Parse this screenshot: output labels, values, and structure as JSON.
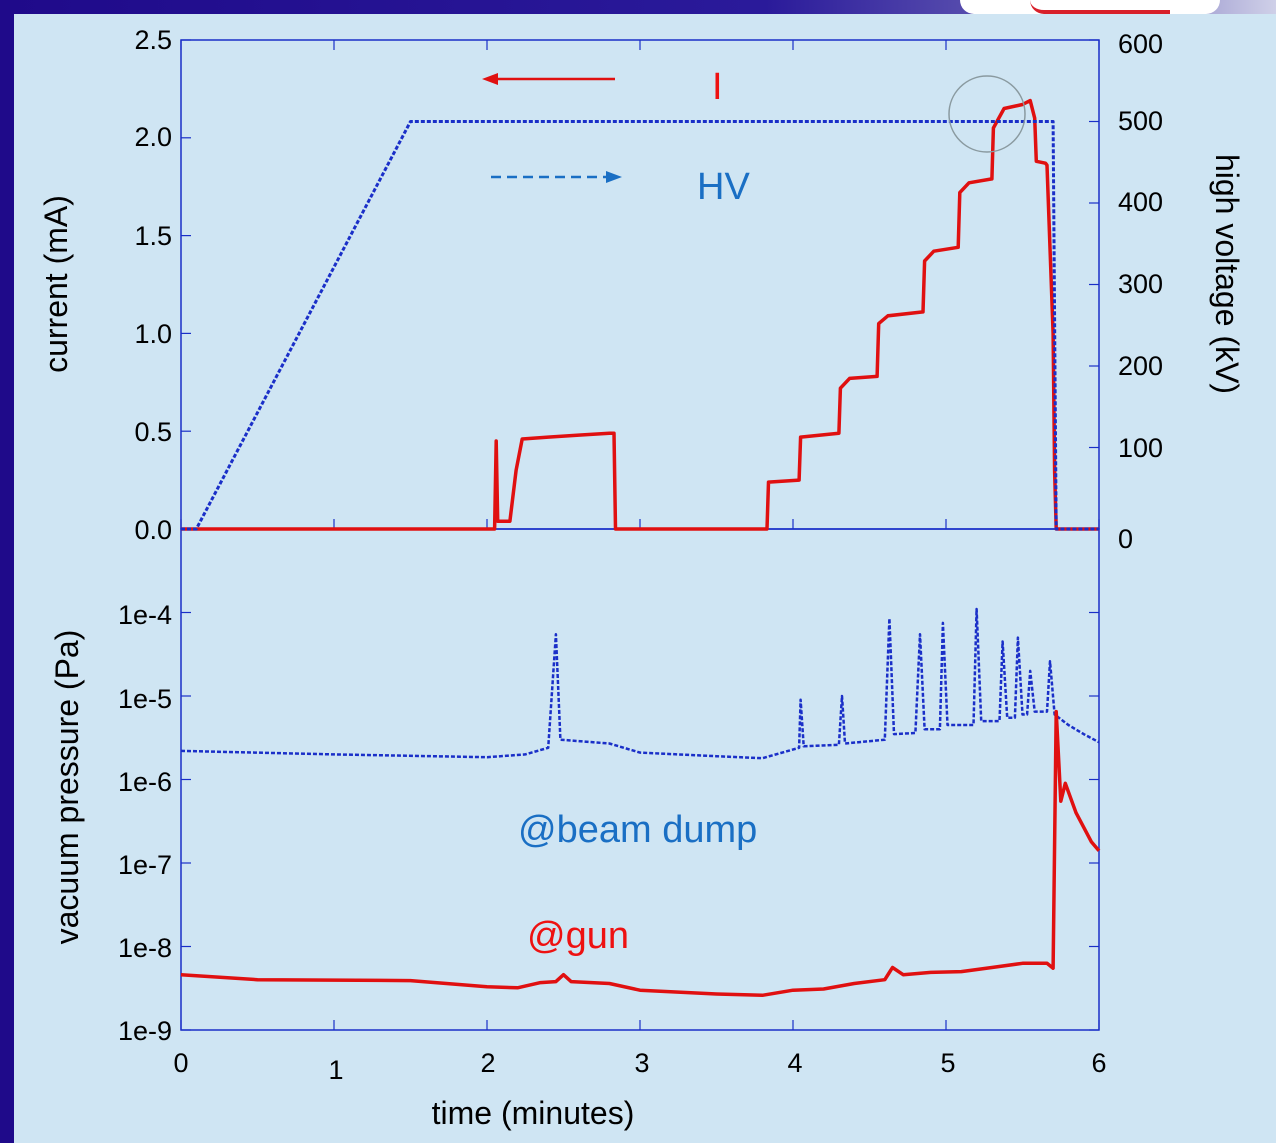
{
  "colors": {
    "current": "#e01010",
    "hv": "#1a2fc8",
    "beam_dump": "#1a2fc8",
    "gun": "#e01010",
    "background": "#cfe5f3",
    "frame": "#1f0a8a",
    "anno_blue": "#1a6fc4"
  },
  "chart_data": [
    {
      "type": "line",
      "xlabel": "time (minutes)",
      "ylabel": "current (mA)",
      "y2label": "high voltage (kV)",
      "xlim": [
        0,
        6
      ],
      "ylim": [
        0,
        2.5
      ],
      "y2lim": [
        0,
        600
      ],
      "y_ticks": [
        "0.0",
        "0.5",
        "1.0",
        "1.5",
        "2.0",
        "2.5"
      ],
      "y2_ticks": [
        "0",
        "100",
        "200",
        "300",
        "400",
        "500",
        "600"
      ],
      "annotations": {
        "current_label": "I",
        "hv_label": "HV"
      },
      "series": [
        {
          "name": "I",
          "axis": "left",
          "style": "solid",
          "points": [
            [
              0,
              0
            ],
            [
              2.05,
              0
            ],
            [
              2.06,
              0.45
            ],
            [
              2.07,
              0.04
            ],
            [
              2.15,
              0.04
            ],
            [
              2.19,
              0.3
            ],
            [
              2.23,
              0.46
            ],
            [
              2.4,
              0.47
            ],
            [
              2.6,
              0.48
            ],
            [
              2.8,
              0.49
            ],
            [
              2.83,
              0.49
            ],
            [
              2.84,
              0
            ],
            [
              3.83,
              0
            ],
            [
              3.84,
              0.24
            ],
            [
              4.04,
              0.25
            ],
            [
              4.05,
              0.47
            ],
            [
              4.3,
              0.49
            ],
            [
              4.31,
              0.72
            ],
            [
              4.37,
              0.77
            ],
            [
              4.55,
              0.78
            ],
            [
              4.56,
              1.05
            ],
            [
              4.62,
              1.09
            ],
            [
              4.85,
              1.11
            ],
            [
              4.86,
              1.37
            ],
            [
              4.92,
              1.42
            ],
            [
              5.08,
              1.44
            ],
            [
              5.09,
              1.72
            ],
            [
              5.15,
              1.77
            ],
            [
              5.3,
              1.79
            ],
            [
              5.31,
              2.05
            ],
            [
              5.38,
              2.15
            ],
            [
              5.5,
              2.17
            ],
            [
              5.55,
              2.19
            ],
            [
              5.58,
              2.1
            ],
            [
              5.59,
              1.88
            ],
            [
              5.65,
              1.87
            ],
            [
              5.66,
              1.86
            ],
            [
              5.7,
              1.0
            ],
            [
              5.71,
              0.3
            ],
            [
              5.72,
              0
            ],
            [
              6,
              0
            ]
          ]
        },
        {
          "name": "HV",
          "axis": "right",
          "style": "dashed",
          "points": [
            [
              0,
              0
            ],
            [
              0.1,
              0
            ],
            [
              1.5,
              500
            ],
            [
              5.7,
              500
            ],
            [
              5.72,
              0
            ],
            [
              6,
              0
            ]
          ]
        }
      ]
    },
    {
      "type": "line",
      "xlabel": "time (minutes)",
      "ylabel": "vacuum pressure (Pa)",
      "yscale": "log",
      "xlim": [
        0,
        6
      ],
      "ylim": [
        1e-09,
        0.001
      ],
      "y_ticks": [
        "1e-9",
        "1e-8",
        "1e-7",
        "1e-6",
        "1e-5",
        "1e-4"
      ],
      "x_ticks": [
        "0",
        "1",
        "2",
        "3",
        "4",
        "5",
        "6"
      ],
      "annotations": {
        "beam_dump_label": "@beam dump",
        "gun_label": "@gun"
      },
      "series": [
        {
          "name": "@beam dump",
          "style": "dashed",
          "points": [
            [
              0,
              2.2e-06
            ],
            [
              1,
              2e-06
            ],
            [
              2,
              1.85e-06
            ],
            [
              2.25,
              2e-06
            ],
            [
              2.4,
              2.4e-06
            ],
            [
              2.45,
              5.5e-05
            ],
            [
              2.48,
              3e-06
            ],
            [
              2.8,
              2.7e-06
            ],
            [
              3,
              2.1e-06
            ],
            [
              3.5,
              1.9e-06
            ],
            [
              3.8,
              1.8e-06
            ],
            [
              4.04,
              2.4e-06
            ],
            [
              4.05,
              9e-06
            ],
            [
              4.07,
              2.5e-06
            ],
            [
              4.3,
              2.6e-06
            ],
            [
              4.32,
              1e-05
            ],
            [
              4.34,
              2.7e-06
            ],
            [
              4.6,
              3e-06
            ],
            [
              4.63,
              8.5e-05
            ],
            [
              4.66,
              3.5e-06
            ],
            [
              4.8,
              3.6e-06
            ],
            [
              4.83,
              5.5e-05
            ],
            [
              4.86,
              4e-06
            ],
            [
              4.96,
              4e-06
            ],
            [
              4.98,
              7.5e-05
            ],
            [
              5.01,
              4.5e-06
            ],
            [
              5.18,
              4.5e-06
            ],
            [
              5.2,
              0.00011
            ],
            [
              5.23,
              5e-06
            ],
            [
              5.35,
              5e-06
            ],
            [
              5.37,
              4.5e-05
            ],
            [
              5.4,
              5.5e-06
            ],
            [
              5.45,
              5.5e-06
            ],
            [
              5.47,
              5e-05
            ],
            [
              5.5,
              6e-06
            ],
            [
              5.53,
              6e-06
            ],
            [
              5.55,
              2e-05
            ],
            [
              5.58,
              6.5e-06
            ],
            [
              5.66,
              6.5e-06
            ],
            [
              5.68,
              2.6e-05
            ],
            [
              5.71,
              6e-06
            ],
            [
              5.8,
              4.5e-06
            ],
            [
              5.9,
              3.5e-06
            ],
            [
              6,
              2.8e-06
            ]
          ]
        },
        {
          "name": "@gun",
          "style": "solid",
          "points": [
            [
              0,
              4.6e-09
            ],
            [
              0.5,
              4e-09
            ],
            [
              1.5,
              3.9e-09
            ],
            [
              2,
              3.3e-09
            ],
            [
              2.2,
              3.2e-09
            ],
            [
              2.35,
              3.7e-09
            ],
            [
              2.45,
              3.8e-09
            ],
            [
              2.5,
              4.6e-09
            ],
            [
              2.55,
              3.8e-09
            ],
            [
              2.8,
              3.6e-09
            ],
            [
              3,
              3e-09
            ],
            [
              3.5,
              2.7e-09
            ],
            [
              3.8,
              2.6e-09
            ],
            [
              4,
              3e-09
            ],
            [
              4.2,
              3.1e-09
            ],
            [
              4.4,
              3.6e-09
            ],
            [
              4.6,
              4e-09
            ],
            [
              4.65,
              5.6e-09
            ],
            [
              4.72,
              4.6e-09
            ],
            [
              4.9,
              4.9e-09
            ],
            [
              5.1,
              5e-09
            ],
            [
              5.3,
              5.6e-09
            ],
            [
              5.5,
              6.3e-09
            ],
            [
              5.66,
              6.3e-09
            ],
            [
              5.7,
              5.5e-09
            ],
            [
              5.72,
              6.5e-06
            ],
            [
              5.75,
              5.5e-07
            ],
            [
              5.78,
              9e-07
            ],
            [
              5.85,
              4e-07
            ],
            [
              5.95,
              1.8e-07
            ],
            [
              6,
              1.4e-07
            ]
          ]
        }
      ]
    }
  ]
}
